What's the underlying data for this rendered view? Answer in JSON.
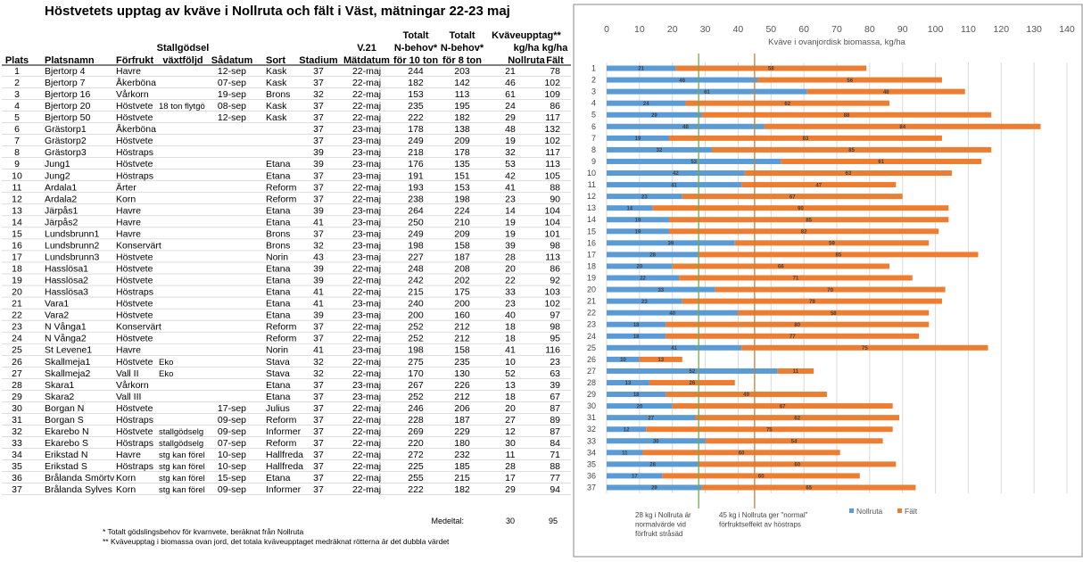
{
  "title": "Höstvetets upptag av kväve i Nollruta och fält i Väst, mätningar 22-23  maj",
  "table": {
    "columns": [
      [
        "Plats"
      ],
      [
        "Platsnamn"
      ],
      [
        "Förfrukt"
      ],
      [
        "Stallgödsel",
        "växtföljd"
      ],
      [
        "Sådatum"
      ],
      [
        "Sort"
      ],
      [
        "Stadium"
      ],
      [
        "V.21",
        "Mätdatum"
      ],
      [
        "Totalt",
        "N-behov*",
        "för 10 ton"
      ],
      [
        "Totalt",
        "N-behov*",
        "för 8 ton"
      ],
      [
        "Kväveupptag**",
        "kg/ha",
        "Nollruta"
      ],
      [
        "kg/ha",
        "Fält"
      ]
    ],
    "rows": [
      [
        1,
        "Bjertorp 4",
        "Havre",
        null,
        "12-sep",
        "Kask",
        37,
        "22-maj",
        244,
        203,
        21,
        78
      ],
      [
        2,
        "Bjertorp 7",
        "Åkerböna",
        null,
        "07-sep",
        "Kask",
        37,
        "22-maj",
        182,
        142,
        46,
        102
      ],
      [
        3,
        "Bjertorp 16",
        "Vårkorn",
        null,
        "19-sep",
        "Brons",
        32,
        "22-maj",
        153,
        113,
        61,
        109
      ],
      [
        4,
        "Bjertorp 20",
        "Höstvete",
        "18 ton flytgö",
        "08-sep",
        "Kask",
        37,
        "22-maj",
        235,
        195,
        24,
        86
      ],
      [
        5,
        "Bjertorp 50",
        "Höstvete",
        null,
        "12-sep",
        "Kask",
        37,
        "22-maj",
        222,
        182,
        29,
        117
      ],
      [
        6,
        "Grästorp1",
        "Åkerböna",
        null,
        null,
        null,
        37,
        "23-maj",
        178,
        138,
        48,
        132
      ],
      [
        7,
        "Grästorp2",
        "Höstvete",
        null,
        null,
        null,
        37,
        "23-maj",
        249,
        209,
        19,
        102
      ],
      [
        8,
        "Grästorp3",
        "Höstraps",
        null,
        null,
        null,
        39,
        "23-maj",
        218,
        178,
        32,
        117
      ],
      [
        9,
        "Jung1",
        "Höstvete",
        null,
        null,
        "Etana",
        39,
        "23-maj",
        176,
        135,
        53,
        113
      ],
      [
        10,
        "Jung2",
        "Höstraps",
        null,
        null,
        "Etana",
        37,
        "23-maj",
        191,
        151,
        42,
        105
      ],
      [
        11,
        "Ardala1",
        "Ärter",
        null,
        null,
        "Reform",
        37,
        "22-maj",
        193,
        153,
        41,
        88
      ],
      [
        12,
        "Ardala2",
        "Korn",
        null,
        null,
        "Reform",
        37,
        "22-maj",
        238,
        198,
        23,
        90
      ],
      [
        13,
        "Järpås1",
        "Havre",
        null,
        null,
        "Etana",
        39,
        "23-maj",
        264,
        224,
        14,
        104
      ],
      [
        14,
        "Järpås2",
        "Havre",
        null,
        null,
        "Etana",
        41,
        "23-maj",
        250,
        210,
        19,
        104
      ],
      [
        15,
        "Lundsbrunn1",
        "Havre",
        null,
        null,
        "Brons",
        37,
        "23-maj",
        249,
        209,
        19,
        101
      ],
      [
        16,
        "Lundsbrunn2",
        "Konservärt",
        null,
        null,
        "Brons",
        32,
        "23-maj",
        198,
        158,
        39,
        98
      ],
      [
        17,
        "Lundsbrunn3",
        "Höstvete",
        null,
        null,
        "Norin",
        43,
        "23-maj",
        227,
        187,
        28,
        113
      ],
      [
        18,
        "Hasslösa1",
        "Höstvete",
        null,
        null,
        "Etana",
        39,
        "22-maj",
        248,
        208,
        20,
        86
      ],
      [
        19,
        "Hasslösa2",
        "Höstvete",
        null,
        null,
        "Etana",
        39,
        "22-maj",
        242,
        202,
        22,
        92
      ],
      [
        20,
        "Hasslösa3",
        "Höstraps",
        null,
        null,
        "Etana",
        41,
        "22-maj",
        215,
        175,
        33,
        103
      ],
      [
        21,
        "Vara1",
        "Höstvete",
        null,
        null,
        "Etana",
        41,
        "23-maj",
        240,
        200,
        23,
        102
      ],
      [
        22,
        "Vara2",
        "Höstvete",
        null,
        null,
        "Etana",
        39,
        "23-maj",
        200,
        160,
        40,
        97
      ],
      [
        23,
        "N Vånga1",
        "Konservärt",
        null,
        null,
        "Reform",
        37,
        "22-maj",
        252,
        212,
        18,
        98
      ],
      [
        24,
        "N Vånga2",
        "Höstvete",
        null,
        null,
        "Reform",
        37,
        "22-maj",
        252,
        212,
        18,
        95
      ],
      [
        25,
        "St Levene1",
        "Havre",
        null,
        null,
        "Norin",
        41,
        "23-maj",
        198,
        158,
        41,
        116
      ],
      [
        26,
        "Skallmeja1",
        "Höstvete",
        "Eko",
        null,
        "Stava",
        32,
        "22-maj",
        275,
        235,
        10,
        23
      ],
      [
        27,
        "Skallmeja2",
        "Vall II",
        "Eko",
        null,
        "Stava",
        32,
        "22-maj",
        170,
        130,
        52,
        63
      ],
      [
        28,
        "Skara1",
        "Vårkorn",
        null,
        null,
        "Etana",
        37,
        "23-maj",
        267,
        226,
        13,
        39
      ],
      [
        29,
        "Skara2",
        "Vall III",
        null,
        null,
        "Etana",
        37,
        "23-maj",
        252,
        212,
        18,
        67
      ],
      [
        30,
        "Borgan N",
        "Höstvete",
        null,
        "17-sep",
        "Julius",
        37,
        "22-maj",
        246,
        206,
        20,
        87
      ],
      [
        31,
        "Borgan S",
        "Höstraps",
        null,
        "09-sep",
        "Reform",
        37,
        "22-maj",
        228,
        187,
        27,
        89
      ],
      [
        32,
        "Ekarebo N",
        "Höstvete",
        "stallgödselg",
        "09-sep",
        "Informer",
        37,
        "22-maj",
        269,
        229,
        12,
        87
      ],
      [
        33,
        "Ekarebo S",
        "Höstraps",
        "stallgödselg",
        "07-sep",
        "Reform",
        37,
        "22-maj",
        220,
        180,
        30,
        84
      ],
      [
        34,
        "Erikstad N",
        "Havre",
        "stg kan förel",
        "10-sep",
        "Hallfreda",
        37,
        "22-maj",
        272,
        232,
        11,
        71
      ],
      [
        35,
        "Erikstad S",
        "Höstraps",
        "stg kan förel",
        "10-sep",
        "Hallfreda",
        37,
        "22-maj",
        225,
        185,
        28,
        88
      ],
      [
        36,
        "Brålanda Smörtv",
        "Korn",
        "stg kan förel",
        "15-sep",
        "Etana",
        37,
        "22-maj",
        255,
        215,
        17,
        77
      ],
      [
        37,
        "Brålanda Sylves",
        "Korn",
        "stg kan förel",
        "09-sep",
        "Informer",
        37,
        "22-maj",
        222,
        182,
        29,
        94
      ]
    ],
    "average": {
      "label": "Medeltal:",
      "values": [
        30,
        95
      ]
    }
  },
  "footnotes": [
    "* Totalt gödslingsbehov för kvarnvete, beräknat från Nollruta",
    "** Kväveupptag i biomassa ovan jord, det totala kväveupptaget medräknat rötterna är det dubbla värdet"
  ],
  "chart_data": {
    "type": "bar",
    "orientation": "horizontal",
    "stacked": true,
    "x_label": "Kväve i ovanjordisk biomassa, kg/ha",
    "categories": [
      1,
      2,
      3,
      4,
      5,
      6,
      7,
      8,
      9,
      10,
      11,
      12,
      13,
      14,
      15,
      16,
      17,
      18,
      19,
      20,
      21,
      22,
      23,
      24,
      25,
      26,
      27,
      28,
      29,
      30,
      31,
      32,
      33,
      34,
      35,
      36,
      37
    ],
    "series": [
      {
        "name": "Nollruta",
        "color": "#5b9bd5",
        "values": [
          21,
          46,
          61,
          24,
          29,
          48,
          19,
          32,
          53,
          42,
          41,
          23,
          14,
          19,
          19,
          39,
          28,
          20,
          22,
          33,
          23,
          40,
          18,
          18,
          41,
          10,
          52,
          13,
          18,
          20,
          27,
          12,
          30,
          11,
          28,
          17,
          29
        ]
      },
      {
        "name": "Fält",
        "color": "#ed7d31",
        "values": [
          58,
          56,
          48,
          62,
          88,
          84,
          83,
          85,
          61,
          63,
          47,
          67,
          90,
          85,
          82,
          59,
          85,
          66,
          71,
          70,
          79,
          58,
          80,
          77,
          75,
          13,
          11,
          26,
          49,
          67,
          62,
          75,
          54,
          60,
          60,
          60,
          65
        ]
      }
    ],
    "xlim": [
      0,
      140
    ],
    "xticks": [
      0,
      10,
      20,
      30,
      40,
      50,
      60,
      70,
      80,
      90,
      100,
      110,
      120,
      130,
      140
    ],
    "grid": true,
    "legend": "bottom",
    "reference_lines": [
      {
        "value": 28,
        "color": "#70ad47",
        "label": [
          "28 kg i Nollruta är",
          "normalvärde vid",
          "förfrukt stråsäd"
        ]
      },
      {
        "value": 45,
        "color": "#c5803a",
        "label": [
          "45 kg i Nollruta ger \"normal\"",
          "förfruktseffekt av höstraps"
        ]
      }
    ]
  }
}
